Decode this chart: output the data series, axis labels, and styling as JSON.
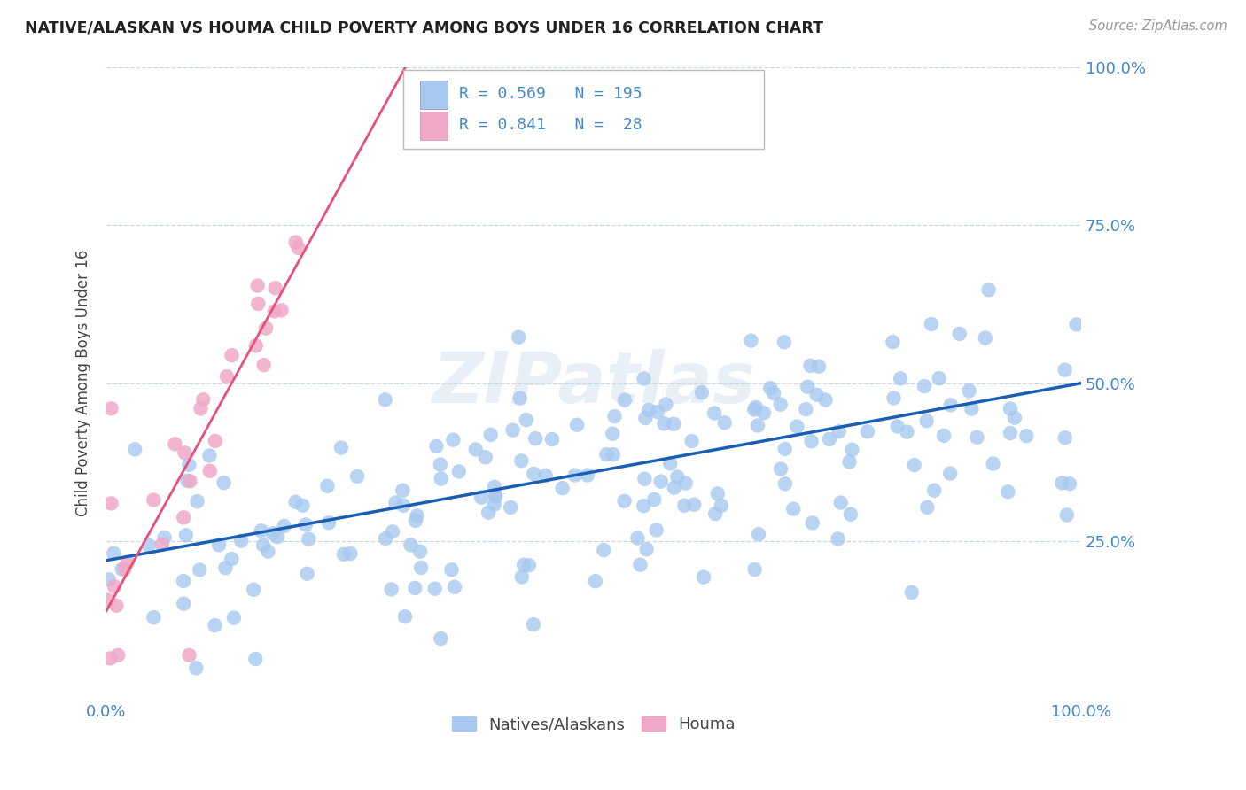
{
  "title": "NATIVE/ALASKAN VS HOUMA CHILD POVERTY AMONG BOYS UNDER 16 CORRELATION CHART",
  "source": "Source: ZipAtlas.com",
  "ylabel": "Child Poverty Among Boys Under 16",
  "watermark": "ZIPatlas",
  "legend_labels": [
    "Natives/Alaskans",
    "Houma"
  ],
  "blue_R": 0.569,
  "blue_N": 195,
  "pink_R": 0.841,
  "pink_N": 28,
  "blue_color": "#a8c8f0",
  "pink_color": "#f0a8c8",
  "blue_line_color": "#1a5fb4",
  "pink_line_color": "#e8507a",
  "title_color": "#222222",
  "axis_label_color": "#444444",
  "tick_color": "#4488cc",
  "grid_color": "#c8d8e8",
  "background_color": "#ffffff",
  "blue_intercept": 0.22,
  "blue_slope": 0.28,
  "pink_intercept": 0.14,
  "pink_slope": 2.8
}
